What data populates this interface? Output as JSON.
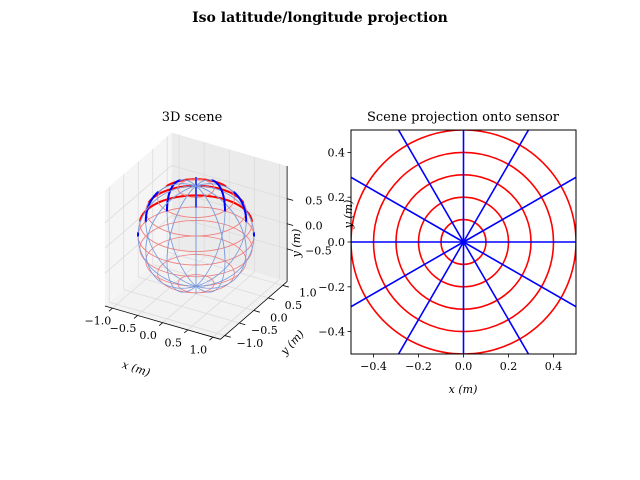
{
  "figure": {
    "title": "Iso latitude/longitude projection"
  },
  "chart_data": [
    {
      "type": "line",
      "subtype": "3d-wireframe-sphere",
      "title": "3D scene",
      "xlabel": "x (m)",
      "ylabel": "y (m)",
      "zlabel": "y (m)",
      "xlim": [
        -1.0,
        1.0
      ],
      "ylim": [
        -1.0,
        1.0
      ],
      "zlim": [
        -1.0,
        1.0
      ],
      "x_ticks": [
        "−1.0",
        "−0.5",
        "0.0",
        "0.5",
        "1.0"
      ],
      "y_ticks": [
        "−1.0",
        "−0.5",
        "0.0",
        "0.5",
        "1.0"
      ],
      "z_ticks": [
        "−0.5",
        "0.0",
        "0.5"
      ],
      "sphere_radius": 1.0,
      "latitudes": [
        0.25,
        0.5,
        0.75,
        0.95
      ],
      "longitudes_count": 12,
      "series": [
        {
          "color": "#ff0000",
          "faint_color": "#f08080"
        },
        {
          "color": "#0000ff",
          "faint_color": "#7799dd"
        }
      ]
    },
    {
      "type": "line",
      "subtype": "polar-grid",
      "title": "Scene projection onto sensor",
      "xlabel": "x (m)",
      "ylabel": "y (m)",
      "xlim": [
        -0.5,
        0.5
      ],
      "ylim": [
        -0.5,
        0.5
      ],
      "x_ticks": [
        "−0.4",
        "−0.2",
        "0.0",
        "0.2",
        "0.4"
      ],
      "y_ticks": [
        "−0.4",
        "−0.2",
        "0.0",
        "0.2",
        "0.4"
      ],
      "circle_radii": [
        0.1,
        0.2,
        0.3,
        0.4,
        0.5
      ],
      "ray_angles_deg": [
        0,
        30,
        60,
        90,
        120,
        150,
        180,
        210,
        240,
        270,
        300,
        330
      ],
      "series": [
        {
          "color": "#ff0000"
        },
        {
          "color": "#0000ff"
        }
      ]
    }
  ]
}
